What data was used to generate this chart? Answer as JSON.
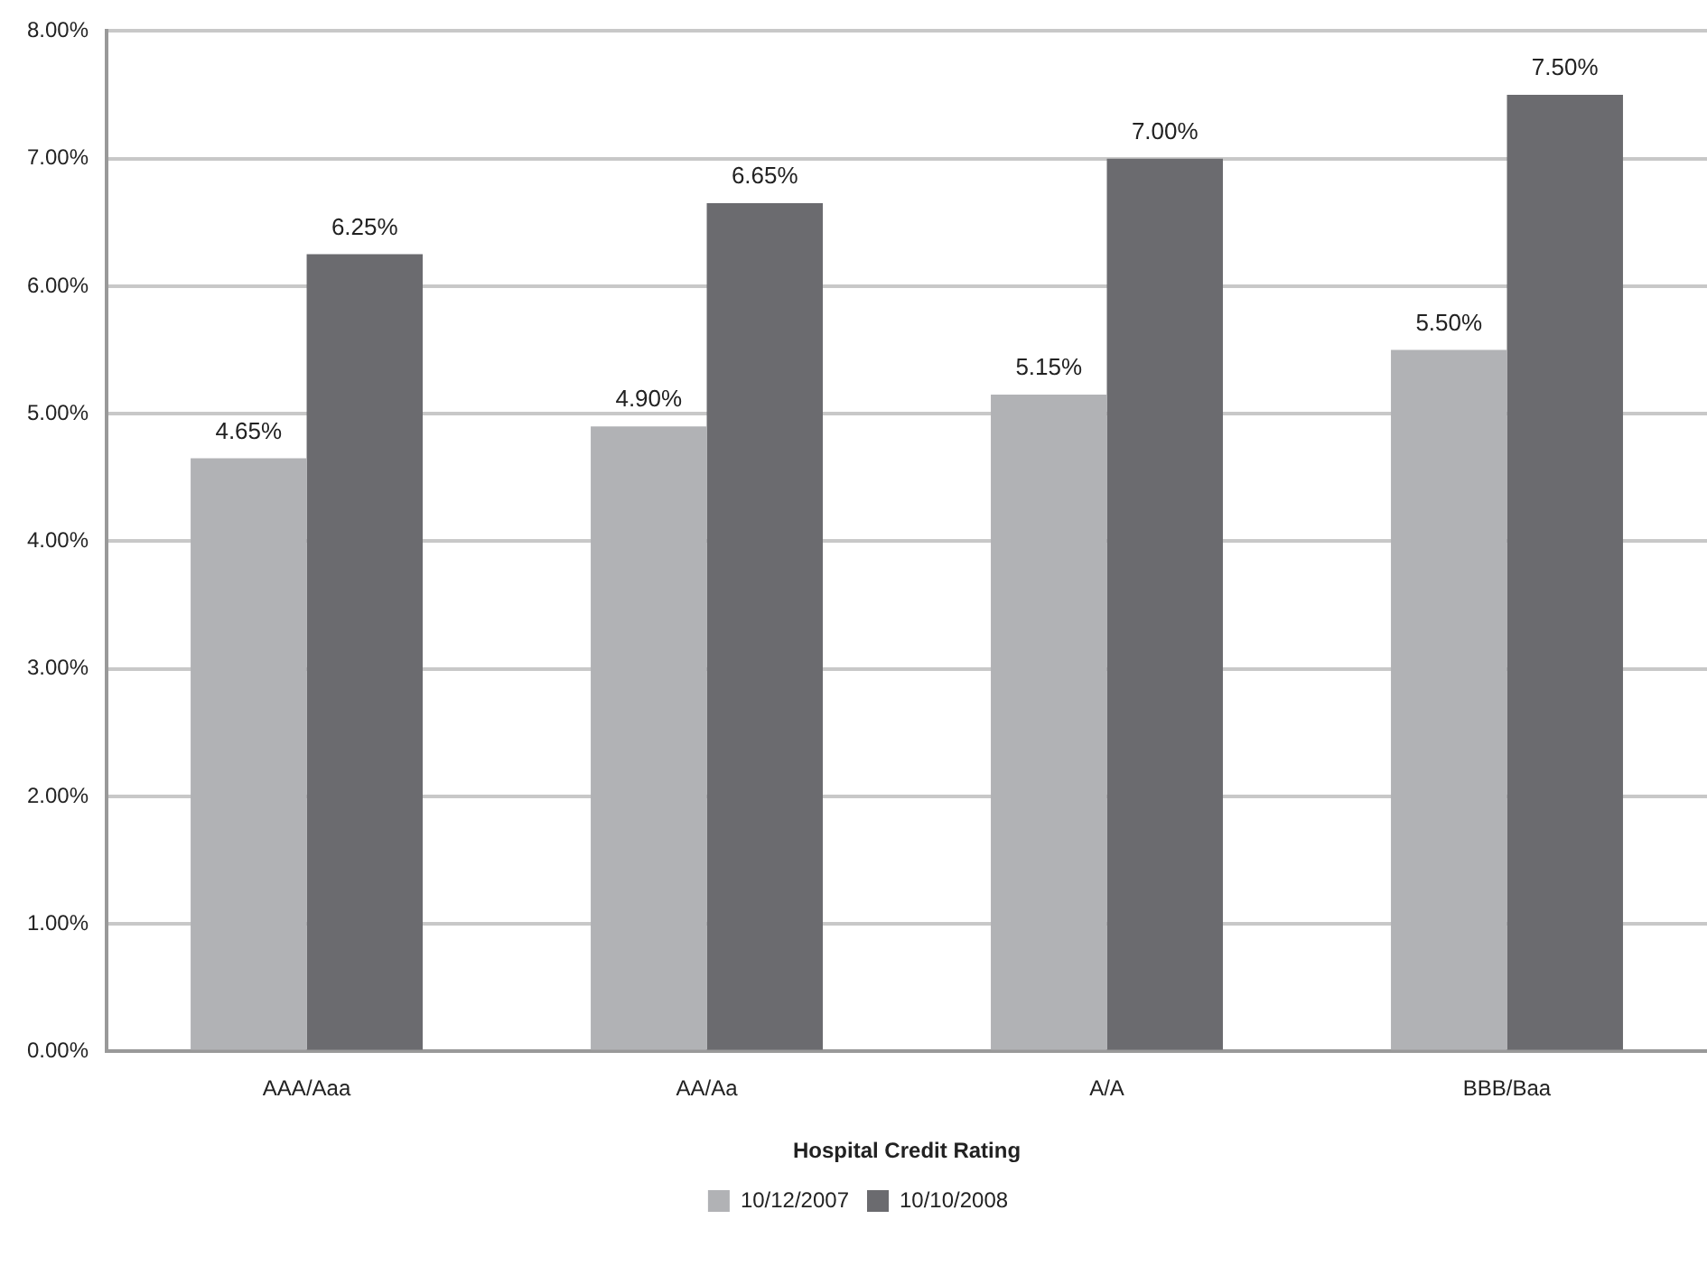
{
  "chart_data": {
    "type": "bar",
    "xlabel": "Hospital Credit Rating",
    "categories": [
      "AAA/Aaa",
      "AA/Aa",
      "A/A",
      "BBB/Baa"
    ],
    "series": [
      {
        "name": "10/12/2007",
        "color": "#b1b2b5",
        "values": [
          4.65,
          4.9,
          5.15,
          5.5
        ],
        "value_labels": [
          "4.65%",
          "4.90%",
          "5.15%",
          "5.50%"
        ]
      },
      {
        "name": "10/10/2008",
        "color": "#6b6b6f",
        "values": [
          6.25,
          6.65,
          7.0,
          7.5
        ],
        "value_labels": [
          "6.25%",
          "6.65%",
          "7.00%",
          "7.50%"
        ]
      }
    ],
    "ylim": [
      0,
      8
    ],
    "yticks": [
      {
        "value": 0,
        "label": "0.00%"
      },
      {
        "value": 1,
        "label": "1.00%"
      },
      {
        "value": 2,
        "label": "2.00%"
      },
      {
        "value": 3,
        "label": "3.00%"
      },
      {
        "value": 4,
        "label": "4.00%"
      },
      {
        "value": 5,
        "label": "5.00%"
      },
      {
        "value": 6,
        "label": "6.00%"
      },
      {
        "value": 7,
        "label": "7.00%"
      },
      {
        "value": 8,
        "label": "8.00%"
      }
    ],
    "grid": "y",
    "legend": "bottom"
  }
}
